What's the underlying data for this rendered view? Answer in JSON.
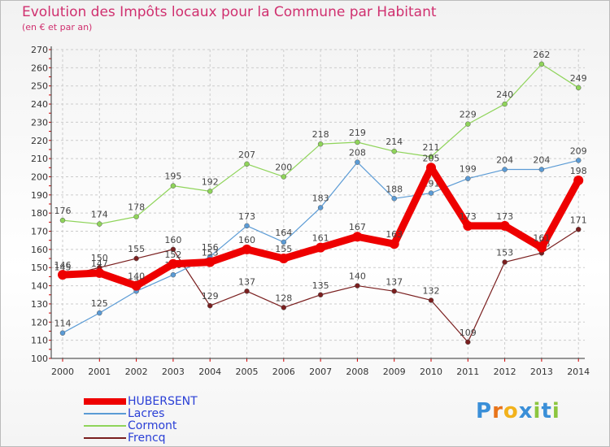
{
  "title": "Evolution des Impôts locaux pour la Commune par Habitant",
  "subtitle": "(en € et par an)",
  "logo": "Proxiti",
  "chart_data": {
    "type": "line",
    "title": "Evolution des Impôts locaux pour la Commune par Habitant",
    "subtitle": "(en € et par an)",
    "xlabel": "",
    "ylabel": "",
    "x": [
      "2000",
      "2001",
      "2002",
      "2003",
      "2004",
      "2005",
      "2006",
      "2007",
      "2008",
      "2009",
      "2010",
      "2011",
      "2012",
      "2013",
      "2014"
    ],
    "ylim": [
      100,
      270
    ],
    "yticks": [
      100,
      110,
      120,
      130,
      140,
      150,
      160,
      170,
      180,
      190,
      200,
      210,
      220,
      230,
      240,
      250,
      260,
      270
    ],
    "grid": true,
    "legend_position": "bottom-left",
    "series": [
      {
        "name": "HUBERSENT",
        "color": "#ee0000",
        "values": [
          146,
          147,
          140,
          152,
          153,
          160,
          155,
          161,
          167,
          163,
          205,
          173,
          173,
          161,
          198
        ]
      },
      {
        "name": "Lacres",
        "color": "#5b9bd5",
        "values": [
          114,
          125,
          137,
          146,
          156,
          173,
          164,
          183,
          208,
          188,
          191,
          199,
          204,
          204,
          209
        ]
      },
      {
        "name": "Cormont",
        "color": "#8fd45a",
        "values": [
          176,
          174,
          178,
          195,
          192,
          207,
          200,
          218,
          219,
          214,
          211,
          229,
          240,
          262,
          249
        ]
      },
      {
        "name": "Frencq",
        "color": "#7a1f1f",
        "values": [
          145,
          150,
          155,
          160,
          129,
          137,
          128,
          135,
          140,
          137,
          132,
          109,
          153,
          158,
          171
        ]
      }
    ]
  }
}
